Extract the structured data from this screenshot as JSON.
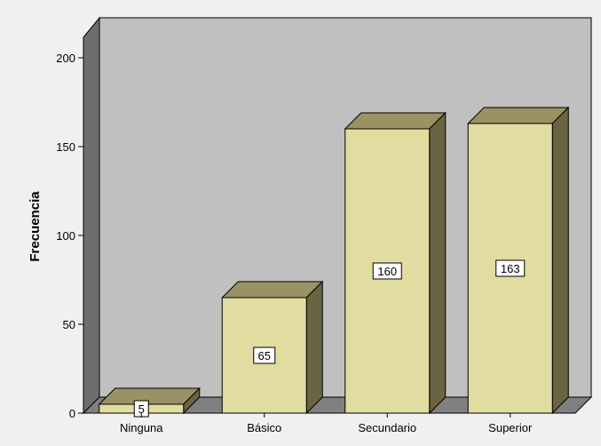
{
  "chart_data": {
    "type": "bar",
    "title": "",
    "xlabel": "",
    "ylabel": "Frecuencia",
    "categories": [
      "Ninguna",
      "Básico",
      "Secundario",
      "Superior"
    ],
    "values": [
      5,
      65,
      160,
      163
    ],
    "data_labels": [
      "5",
      "65",
      "160",
      "163"
    ],
    "ylim": [
      0,
      200
    ],
    "yticks": [
      0,
      50,
      100,
      150,
      200
    ],
    "grid": false,
    "legend": "none",
    "style": "3d",
    "colors": {
      "page_background": "#f0f0f0",
      "plot_background": "#c0c0c0",
      "floor": "#808080",
      "side_wall": "#6e6e6e",
      "bar_front": "#e1dca0",
      "bar_top": "#9a9164",
      "bar_side": "#6b6443",
      "outline": "#000000",
      "label_box": "#ffffff"
    }
  }
}
